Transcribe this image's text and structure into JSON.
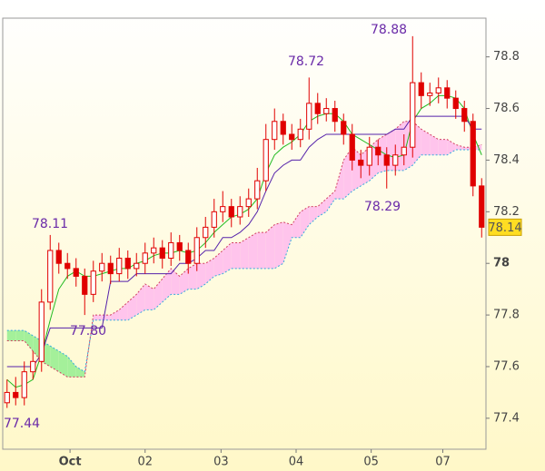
{
  "chart_data": {
    "type": "candlestick",
    "x": [
      0.5,
      1.5,
      2.5,
      3.5,
      4.5,
      5.5,
      6.5,
      7.5,
      8.5,
      9.5,
      10.5,
      11.5,
      12.5,
      13.5,
      14.5,
      15.5,
      16.5,
      17.5,
      18.5,
      19.5,
      20.5,
      21.5,
      22.5,
      23.5,
      24.5,
      25.5,
      26.5,
      27.5,
      28.5,
      29.5,
      30.5,
      31.5,
      32.5,
      33.5,
      34.5,
      35.5,
      36.5,
      37.5,
      38.5,
      39.5,
      40.5,
      41.5,
      42.5,
      43.5,
      44.5,
      45.5,
      46.5,
      47.5,
      48.5,
      49.5,
      50.5,
      51.5,
      52.5,
      53.5,
      54.5,
      55.5
    ],
    "open": [
      77.46,
      77.5,
      77.48,
      77.58,
      77.62,
      77.85,
      78.05,
      78.0,
      77.98,
      77.95,
      77.88,
      77.97,
      78.0,
      77.96,
      78.02,
      77.98,
      78.0,
      78.04,
      78.06,
      78.02,
      78.08,
      78.05,
      78.0,
      78.1,
      78.14,
      78.2,
      78.22,
      78.18,
      78.22,
      78.25,
      78.32,
      78.48,
      78.55,
      78.5,
      78.48,
      78.52,
      78.62,
      78.58,
      78.6,
      78.55,
      78.5,
      78.4,
      78.38,
      78.45,
      78.42,
      78.38,
      78.42,
      78.45,
      78.7,
      78.65,
      78.66,
      78.68,
      78.64,
      78.6,
      78.55,
      78.3
    ],
    "high": [
      77.55,
      77.56,
      77.62,
      77.66,
      77.9,
      78.11,
      78.08,
      78.04,
      78.02,
      77.98,
      78.01,
      78.04,
      78.03,
      78.06,
      78.05,
      78.04,
      78.08,
      78.1,
      78.09,
      78.12,
      78.11,
      78.08,
      78.14,
      78.18,
      78.25,
      78.28,
      78.25,
      78.26,
      78.29,
      78.37,
      78.54,
      78.6,
      78.58,
      78.54,
      78.56,
      78.72,
      78.66,
      78.64,
      78.63,
      78.58,
      78.54,
      78.44,
      78.49,
      78.48,
      78.45,
      78.46,
      78.5,
      78.88,
      78.74,
      78.7,
      78.72,
      78.71,
      78.67,
      78.63,
      78.58,
      78.33
    ],
    "low": [
      77.44,
      77.45,
      77.45,
      77.55,
      77.58,
      77.82,
      77.96,
      77.94,
      77.91,
      77.8,
      77.85,
      77.93,
      77.92,
      77.93,
      77.94,
      77.95,
      77.96,
      78.0,
      77.98,
      77.99,
      78.01,
      77.96,
      77.97,
      78.06,
      78.1,
      78.16,
      78.14,
      78.15,
      78.18,
      78.21,
      78.28,
      78.44,
      78.46,
      78.44,
      78.45,
      78.48,
      78.54,
      78.55,
      78.51,
      78.46,
      78.36,
      78.33,
      78.34,
      78.38,
      78.29,
      78.34,
      78.38,
      78.41,
      78.6,
      78.61,
      78.62,
      78.6,
      78.56,
      78.51,
      78.26,
      78.1
    ],
    "close": [
      77.5,
      77.48,
      77.58,
      77.62,
      77.85,
      78.05,
      78.0,
      77.98,
      77.95,
      77.88,
      77.97,
      78.0,
      77.96,
      78.02,
      77.98,
      78.0,
      78.04,
      78.06,
      78.02,
      78.08,
      78.05,
      78.0,
      78.1,
      78.14,
      78.2,
      78.22,
      78.18,
      78.22,
      78.25,
      78.32,
      78.48,
      78.55,
      78.5,
      78.48,
      78.52,
      78.62,
      78.58,
      78.6,
      78.55,
      78.5,
      78.4,
      78.38,
      78.45,
      78.42,
      78.38,
      78.42,
      78.45,
      78.7,
      78.65,
      78.66,
      78.68,
      78.64,
      78.6,
      78.55,
      78.3,
      78.14
    ],
    "candle_color": "#e00000",
    "lines": [
      {
        "color": "#22bb22",
        "values": [
          77.55,
          77.52,
          77.53,
          77.55,
          77.65,
          77.78,
          77.9,
          77.95,
          77.97,
          77.95,
          77.95,
          77.96,
          77.97,
          77.98,
          77.98,
          78.0,
          78.01,
          78.03,
          78.04,
          78.04,
          78.05,
          78.04,
          78.05,
          78.08,
          78.12,
          78.15,
          78.18,
          78.19,
          78.21,
          78.25,
          78.35,
          78.42,
          78.45,
          78.47,
          78.5,
          78.55,
          78.57,
          78.58,
          78.58,
          78.55,
          78.5,
          78.48,
          78.46,
          78.44,
          78.42,
          78.41,
          78.42,
          78.55,
          78.6,
          78.62,
          78.65,
          78.65,
          78.64,
          78.6,
          78.5,
          78.42
        ]
      },
      {
        "color": "#5522aa",
        "values": [
          77.6,
          77.6,
          77.6,
          77.6,
          77.65,
          77.75,
          77.75,
          77.75,
          77.75,
          77.75,
          77.75,
          77.75,
          77.93,
          77.93,
          77.93,
          77.96,
          77.96,
          77.96,
          77.96,
          77.96,
          78.0,
          78.0,
          78.02,
          78.05,
          78.05,
          78.1,
          78.1,
          78.12,
          78.15,
          78.2,
          78.28,
          78.35,
          78.38,
          78.4,
          78.4,
          78.45,
          78.48,
          78.5,
          78.5,
          78.5,
          78.5,
          78.5,
          78.5,
          78.5,
          78.5,
          78.52,
          78.52,
          78.57,
          78.57,
          78.57,
          78.57,
          78.57,
          78.57,
          78.57,
          78.52,
          78.52
        ]
      }
    ],
    "cloud": {
      "up_color": "#ffc4ec",
      "down_color": "#a4f09a",
      "span_a_color": "#d04060",
      "span_b_color": "#33aadd",
      "span_a": [
        77.7,
        77.7,
        77.7,
        77.66,
        77.62,
        77.6,
        77.58,
        77.56,
        77.56,
        77.56,
        77.8,
        77.8,
        77.8,
        77.82,
        77.85,
        77.88,
        77.92,
        77.9,
        77.94,
        77.98,
        77.95,
        77.98,
        78.0,
        78.0,
        78.02,
        78.05,
        78.08,
        78.08,
        78.1,
        78.12,
        78.12,
        78.15,
        78.16,
        78.15,
        78.2,
        78.22,
        78.22,
        78.25,
        78.28,
        78.4,
        78.45,
        78.42,
        78.45,
        78.48,
        78.5,
        78.52,
        78.55,
        78.55,
        78.52,
        78.5,
        78.48,
        78.48,
        78.46,
        78.45,
        78.45,
        78.46
      ],
      "span_b": [
        77.74,
        77.74,
        77.74,
        77.72,
        77.7,
        77.68,
        77.66,
        77.64,
        77.6,
        77.58,
        77.78,
        77.78,
        77.78,
        77.78,
        77.78,
        77.8,
        77.82,
        77.82,
        77.85,
        77.88,
        77.88,
        77.9,
        77.9,
        77.92,
        77.95,
        77.96,
        77.98,
        77.98,
        77.98,
        77.98,
        77.98,
        77.98,
        78.0,
        78.1,
        78.1,
        78.15,
        78.18,
        78.2,
        78.25,
        78.25,
        78.28,
        78.3,
        78.32,
        78.35,
        78.36,
        78.36,
        78.36,
        78.38,
        78.42,
        78.42,
        78.42,
        78.42,
        78.44,
        78.44,
        78.44,
        78.44
      ]
    },
    "xlim": [
      0,
      56
    ],
    "xticks": [
      {
        "value": 7.8,
        "label": "Oct"
      },
      {
        "value": 16.5,
        "label": "02"
      },
      {
        "value": 25.3,
        "label": "03"
      },
      {
        "value": 34.0,
        "label": "04"
      },
      {
        "value": 42.7,
        "label": "05"
      },
      {
        "value": 51.0,
        "label": "07"
      }
    ],
    "ylim": [
      77.28,
      78.95
    ],
    "yticks": [
      77.4,
      77.6,
      77.8,
      78,
      78.2,
      78.4,
      78.6,
      78.8
    ],
    "annotations": [
      "78.88",
      "78.72",
      "78.11",
      "77.80",
      "78.29",
      "77.44"
    ],
    "last_price_label": "78.14"
  }
}
